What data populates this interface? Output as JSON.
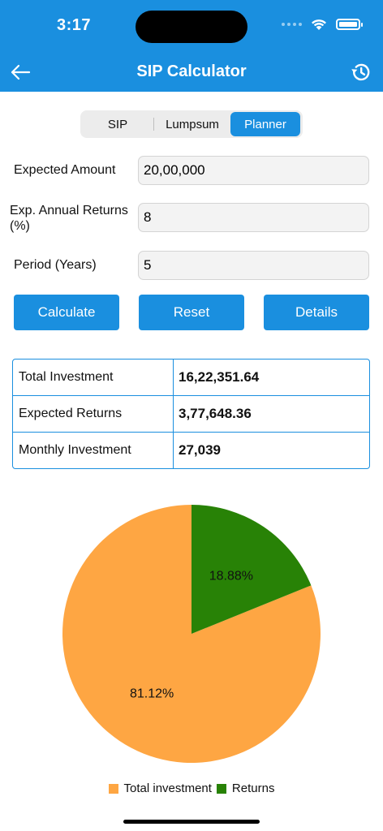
{
  "status_bar": {
    "time": "3:17"
  },
  "nav": {
    "title": "SIP Calculator"
  },
  "tabs": [
    {
      "label": "SIP"
    },
    {
      "label": "Lumpsum"
    },
    {
      "label": "Planner"
    }
  ],
  "form": {
    "expected_amount_label": "Expected Amount",
    "expected_amount_value": "20,00,000",
    "annual_returns_label_line1": "Exp. Annual Returns",
    "annual_returns_label_line2": "(%)",
    "annual_returns_value": "8",
    "period_label": "Period (Years)",
    "period_value": "5"
  },
  "buttons": {
    "calculate": "Calculate",
    "reset": "Reset",
    "details": "Details"
  },
  "results": [
    {
      "label": "Total Investment",
      "value": "16,22,351.64"
    },
    {
      "label": "Expected Returns",
      "value": "3,77,648.36"
    },
    {
      "label": "Monthly Investment",
      "value": "27,039"
    }
  ],
  "chart_data": {
    "type": "pie",
    "slices": [
      {
        "name": "Total investment",
        "value": 81.12,
        "label": "81.12%",
        "color": "#fea643"
      },
      {
        "name": "Returns",
        "value": 18.88,
        "label": "18.88%",
        "color": "#288206"
      }
    ],
    "legend_position": "bottom"
  },
  "colors": {
    "accent": "#1a8fdf"
  }
}
